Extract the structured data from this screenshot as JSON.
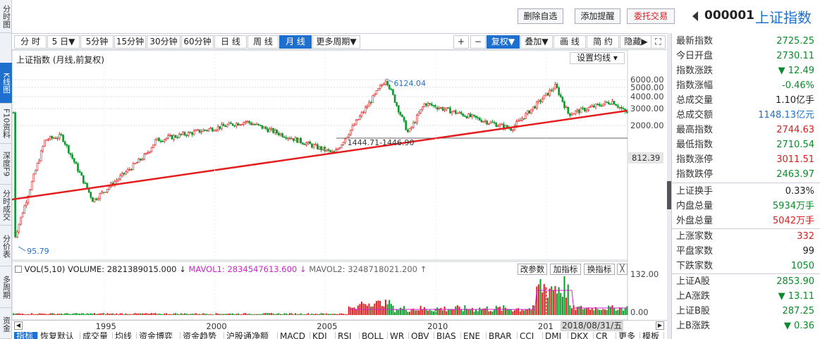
{
  "left_tabs": [
    {
      "label": "分时图",
      "active": false
    },
    {
      "label": "K线图",
      "active": true
    },
    {
      "label": "F10资料",
      "active": false
    },
    {
      "label": "深度F9",
      "active": false
    },
    {
      "label": "分时成交",
      "active": false
    },
    {
      "label": "分价表",
      "active": false
    },
    {
      "label": "多周期",
      "active": false
    },
    {
      "label": "资金",
      "active": false
    }
  ],
  "top_buttons": {
    "delete": "删除自选",
    "alert": "添加提醒",
    "trade": "委托交易"
  },
  "security": {
    "code": "000001",
    "name": "上证指数"
  },
  "period_buttons": [
    {
      "label": "分 时",
      "active": false
    },
    {
      "label": "5 日▼",
      "active": false
    },
    {
      "label": "5分钟",
      "active": false
    },
    {
      "label": "15分钟",
      "active": false
    },
    {
      "label": "30分钟",
      "active": false
    },
    {
      "label": "60分钟",
      "active": false
    },
    {
      "label": "日 线",
      "active": false
    },
    {
      "label": "周 线",
      "active": false
    },
    {
      "label": "月 线",
      "active": true
    },
    {
      "label": "更多周期▼",
      "active": false
    }
  ],
  "tool_buttons": [
    {
      "label": "+",
      "active": false,
      "icon": "plus-icon"
    },
    {
      "label": "−",
      "active": false,
      "icon": "minus-icon"
    },
    {
      "label": "复权▼",
      "active": true,
      "icon": ""
    },
    {
      "label": "叠加▼",
      "active": false,
      "icon": ""
    },
    {
      "label": "画 线",
      "active": false,
      "icon": ""
    },
    {
      "label": "简 约",
      "active": false,
      "icon": ""
    },
    {
      "label": "隐藏▶",
      "active": false,
      "icon": ""
    },
    {
      "label": "⛶",
      "active": false,
      "icon": "fullscreen-icon"
    }
  ],
  "chart_title": "上证指数 (月线,前复权)",
  "ma_setting": "设置均线",
  "chart_data": {
    "type": "candlestick",
    "title": "上证指数 (月线,前复权)",
    "y_ticks": [
      "6000.00",
      "5000.00",
      "4000.00",
      "3000.00",
      "2000.00"
    ],
    "x_ticks": [
      "1995",
      "2000",
      "2005",
      "2010",
      "201"
    ],
    "annotations": {
      "high": "6124.04",
      "low": "95.79",
      "level": "1444.71-1446.90",
      "cursor_value": "812.39"
    },
    "key_points": [
      {
        "t": "1990-12",
        "close": 127
      },
      {
        "t": "1992-05",
        "close": 1420
      },
      {
        "t": "1993-02",
        "close": 1550
      },
      {
        "t": "1994-07",
        "close": 330
      },
      {
        "t": "1996-12",
        "close": 1000
      },
      {
        "t": "1997-05",
        "close": 1400
      },
      {
        "t": "2001-06",
        "close": 2200
      },
      {
        "t": "2005-06",
        "close": 1020
      },
      {
        "t": "2007-10",
        "close": 6124
      },
      {
        "t": "2008-10",
        "close": 1664
      },
      {
        "t": "2009-07",
        "close": 3400
      },
      {
        "t": "2013-06",
        "close": 1850
      },
      {
        "t": "2015-06",
        "close": 5178
      },
      {
        "t": "2016-01",
        "close": 2638
      },
      {
        "t": "2018-01",
        "close": 3587
      },
      {
        "t": "2018-08",
        "close": 2725
      }
    ],
    "volume": {
      "label": "VOL(5,10)",
      "volume": "VOLUME: 2821389015.000",
      "mavol1": "MAVOL1: 2834547613.600",
      "mavol2": "MAVOL2: 3248718021.200",
      "y_ticks": [
        "132.00",
        "0.00"
      ]
    },
    "trendline_color": "#e41e1e"
  },
  "vol_buttons": {
    "param": "改参数",
    "add": "加指标",
    "swap": "换指标",
    "close": "╳"
  },
  "cursor_date": "2018/08/31/五",
  "quote": [
    {
      "label": "最新指数",
      "value": "2725.25",
      "cls": "dn"
    },
    {
      "label": "今日开盘",
      "value": "2730.11",
      "cls": "dn"
    },
    {
      "label": "指数涨跌",
      "value": "▼ 12.49",
      "cls": "dn"
    },
    {
      "label": "指数涨幅",
      "value": "-0.46%",
      "cls": "dn"
    },
    {
      "label": "总成交量",
      "value": "1.10亿手",
      "cls": "nt"
    },
    {
      "label": "总成交额",
      "value": "1148.13亿元",
      "cls": "bl"
    },
    {
      "label": "最高指数",
      "value": "2744.63",
      "cls": "up"
    },
    {
      "label": "最低指数",
      "value": "2710.54",
      "cls": "dn"
    },
    {
      "label": "指数涨停",
      "value": "3011.51",
      "cls": "up"
    },
    {
      "label": "指数跌停",
      "value": "2463.97",
      "cls": "dn"
    }
  ],
  "quote2": [
    {
      "label": "上证换手",
      "value": "0.33%",
      "cls": "nt"
    },
    {
      "label": "内盘总量",
      "value": "5934万手",
      "cls": "dn"
    },
    {
      "label": "外盘总量",
      "value": "5042万手",
      "cls": "up"
    }
  ],
  "quote3": [
    {
      "label": "上涨家数",
      "value": "332",
      "cls": "up"
    },
    {
      "label": "平盘家数",
      "value": "99",
      "cls": "nt"
    },
    {
      "label": "下跌家数",
      "value": "1050",
      "cls": "dn"
    }
  ],
  "quote4": [
    {
      "label": "上证A股",
      "value": "2853.90",
      "cls": "dn"
    },
    {
      "label": "上A涨跌",
      "value": "▼ 13.11",
      "cls": "dn"
    },
    {
      "label": "上证B股",
      "value": "287.25",
      "cls": "dn"
    },
    {
      "label": "上B涨跌",
      "value": "▼ 0.36",
      "cls": "dn"
    }
  ],
  "bottom_tabs": [
    {
      "label": "指标",
      "active": true
    },
    {
      "label": "恢复默认",
      "active": false
    },
    {
      "label": "成交量",
      "active": false
    },
    {
      "label": "均线",
      "active": false
    },
    {
      "label": "资金博弈",
      "active": false
    },
    {
      "label": "资金趋势",
      "active": false
    },
    {
      "label": "沪股通净额",
      "active": false
    },
    {
      "label": "MACD",
      "active": false
    },
    {
      "label": "KDJ",
      "active": false
    },
    {
      "label": "RSI",
      "active": false
    },
    {
      "label": "BOLL",
      "active": false
    },
    {
      "label": "WR",
      "active": false
    },
    {
      "label": "OBV",
      "active": false
    },
    {
      "label": "BIAS",
      "active": false
    },
    {
      "label": "ENE",
      "active": false
    },
    {
      "label": "BRAR",
      "active": false
    },
    {
      "label": "CCI",
      "active": false
    },
    {
      "label": "DMI",
      "active": false
    },
    {
      "label": "DKX",
      "active": false
    },
    {
      "label": "CR",
      "active": false
    },
    {
      "label": "更多",
      "active": false
    },
    {
      "label": "模板",
      "active": false
    }
  ]
}
